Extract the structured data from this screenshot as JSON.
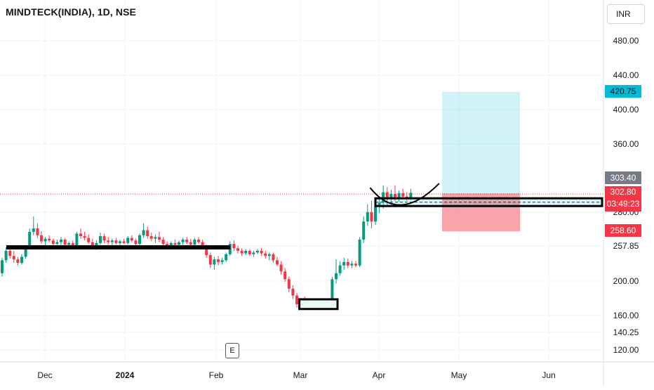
{
  "header": {
    "symbol_title": "MINDTECK(INDIA), 1D, NSE",
    "currency": "INR"
  },
  "earnings_marker": {
    "label": "E"
  },
  "colors": {
    "up": "#089981",
    "down": "#f23645",
    "target_zone": "#00bcd4",
    "stop_zone": "#f23645",
    "annotation": "#000000",
    "grid": "#f0f3fa"
  },
  "price_tags": {
    "target": "420.75",
    "last": "303.40",
    "current": "302.80",
    "countdown": "03:49:23",
    "stop": "258.60"
  },
  "chart_data": {
    "type": "candlestick",
    "title": "MINDTECK(INDIA), 1D, NSE",
    "y_axis": {
      "side": "right",
      "tick_labels": [
        "480.00",
        "440.00",
        "400.00",
        "360.00",
        "280.00",
        "257.85",
        "200.00",
        "160.00",
        "140.25",
        "120.00"
      ]
    },
    "x_axis": {
      "tick_labels": [
        "Dec",
        "2024",
        "Feb",
        "Mar",
        "Apr",
        "May",
        "Jun"
      ]
    },
    "grid": true,
    "candles": [
      {
        "o": 210,
        "h": 228,
        "l": 206,
        "c": 225
      },
      {
        "o": 225,
        "h": 240,
        "l": 222,
        "c": 236
      },
      {
        "o": 236,
        "h": 239,
        "l": 227,
        "c": 230
      },
      {
        "o": 230,
        "h": 236,
        "l": 222,
        "c": 226
      },
      {
        "o": 226,
        "h": 229,
        "l": 219,
        "c": 222
      },
      {
        "o": 222,
        "h": 232,
        "l": 220,
        "c": 229
      },
      {
        "o": 229,
        "h": 243,
        "l": 227,
        "c": 241
      },
      {
        "o": 241,
        "h": 262,
        "l": 239,
        "c": 258
      },
      {
        "o": 258,
        "h": 276,
        "l": 254,
        "c": 262
      },
      {
        "o": 262,
        "h": 268,
        "l": 251,
        "c": 254
      },
      {
        "o": 254,
        "h": 259,
        "l": 244,
        "c": 247
      },
      {
        "o": 247,
        "h": 252,
        "l": 242,
        "c": 250
      },
      {
        "o": 250,
        "h": 254,
        "l": 246,
        "c": 248
      },
      {
        "o": 248,
        "h": 250,
        "l": 242,
        "c": 244
      },
      {
        "o": 244,
        "h": 249,
        "l": 240,
        "c": 246
      },
      {
        "o": 246,
        "h": 252,
        "l": 243,
        "c": 249
      },
      {
        "o": 249,
        "h": 251,
        "l": 241,
        "c": 243
      },
      {
        "o": 243,
        "h": 247,
        "l": 240,
        "c": 245
      },
      {
        "o": 245,
        "h": 248,
        "l": 238,
        "c": 240
      },
      {
        "o": 240,
        "h": 258,
        "l": 238,
        "c": 256
      },
      {
        "o": 256,
        "h": 262,
        "l": 250,
        "c": 253
      },
      {
        "o": 253,
        "h": 258,
        "l": 248,
        "c": 251
      },
      {
        "o": 251,
        "h": 255,
        "l": 244,
        "c": 246
      },
      {
        "o": 246,
        "h": 250,
        "l": 238,
        "c": 241
      },
      {
        "o": 241,
        "h": 248,
        "l": 237,
        "c": 245
      },
      {
        "o": 245,
        "h": 257,
        "l": 243,
        "c": 253
      },
      {
        "o": 253,
        "h": 256,
        "l": 245,
        "c": 248
      },
      {
        "o": 248,
        "h": 252,
        "l": 243,
        "c": 246
      },
      {
        "o": 246,
        "h": 250,
        "l": 242,
        "c": 248
      },
      {
        "o": 248,
        "h": 251,
        "l": 243,
        "c": 245
      },
      {
        "o": 245,
        "h": 249,
        "l": 241,
        "c": 247
      },
      {
        "o": 247,
        "h": 250,
        "l": 244,
        "c": 245
      },
      {
        "o": 245,
        "h": 253,
        "l": 243,
        "c": 251
      },
      {
        "o": 251,
        "h": 254,
        "l": 246,
        "c": 248
      },
      {
        "o": 248,
        "h": 250,
        "l": 242,
        "c": 244
      },
      {
        "o": 244,
        "h": 256,
        "l": 242,
        "c": 254
      },
      {
        "o": 254,
        "h": 268,
        "l": 251,
        "c": 260
      },
      {
        "o": 260,
        "h": 264,
        "l": 250,
        "c": 253
      },
      {
        "o": 253,
        "h": 257,
        "l": 247,
        "c": 250
      },
      {
        "o": 250,
        "h": 255,
        "l": 245,
        "c": 252
      },
      {
        "o": 252,
        "h": 258,
        "l": 246,
        "c": 249
      },
      {
        "o": 249,
        "h": 252,
        "l": 241,
        "c": 244
      },
      {
        "o": 244,
        "h": 247,
        "l": 238,
        "c": 241
      },
      {
        "o": 241,
        "h": 247,
        "l": 238,
        "c": 245
      },
      {
        "o": 245,
        "h": 249,
        "l": 241,
        "c": 243
      },
      {
        "o": 243,
        "h": 248,
        "l": 240,
        "c": 246
      },
      {
        "o": 246,
        "h": 251,
        "l": 243,
        "c": 249
      },
      {
        "o": 249,
        "h": 252,
        "l": 244,
        "c": 246
      },
      {
        "o": 246,
        "h": 250,
        "l": 240,
        "c": 243
      },
      {
        "o": 243,
        "h": 251,
        "l": 241,
        "c": 249
      },
      {
        "o": 249,
        "h": 252,
        "l": 244,
        "c": 246
      },
      {
        "o": 246,
        "h": 249,
        "l": 238,
        "c": 240
      },
      {
        "o": 240,
        "h": 243,
        "l": 228,
        "c": 231
      },
      {
        "o": 231,
        "h": 234,
        "l": 216,
        "c": 220
      },
      {
        "o": 220,
        "h": 229,
        "l": 214,
        "c": 226
      },
      {
        "o": 226,
        "h": 230,
        "l": 219,
        "c": 223
      },
      {
        "o": 223,
        "h": 228,
        "l": 220,
        "c": 225
      },
      {
        "o": 225,
        "h": 234,
        "l": 223,
        "c": 232
      },
      {
        "o": 232,
        "h": 247,
        "l": 230,
        "c": 244
      },
      {
        "o": 244,
        "h": 248,
        "l": 236,
        "c": 239
      },
      {
        "o": 239,
        "h": 242,
        "l": 233,
        "c": 236
      },
      {
        "o": 236,
        "h": 239,
        "l": 230,
        "c": 233
      },
      {
        "o": 233,
        "h": 238,
        "l": 231,
        "c": 236
      },
      {
        "o": 236,
        "h": 238,
        "l": 230,
        "c": 232
      },
      {
        "o": 232,
        "h": 236,
        "l": 229,
        "c": 234
      },
      {
        "o": 234,
        "h": 238,
        "l": 232,
        "c": 236
      },
      {
        "o": 236,
        "h": 239,
        "l": 230,
        "c": 233
      },
      {
        "o": 233,
        "h": 236,
        "l": 227,
        "c": 230
      },
      {
        "o": 230,
        "h": 234,
        "l": 225,
        "c": 232
      },
      {
        "o": 232,
        "h": 234,
        "l": 222,
        "c": 225
      },
      {
        "o": 225,
        "h": 229,
        "l": 218,
        "c": 220
      },
      {
        "o": 220,
        "h": 224,
        "l": 208,
        "c": 212
      },
      {
        "o": 212,
        "h": 216,
        "l": 200,
        "c": 203
      },
      {
        "o": 203,
        "h": 206,
        "l": 188,
        "c": 192
      },
      {
        "o": 192,
        "h": 196,
        "l": 180,
        "c": 184
      },
      {
        "o": 184,
        "h": 187,
        "l": 170,
        "c": 174
      },
      {
        "o": 174,
        "h": 181,
        "l": 170,
        "c": 178
      },
      {
        "o": 178,
        "h": 183,
        "l": 172,
        "c": 175
      },
      {
        "o": 175,
        "h": 179,
        "l": 171,
        "c": 176
      },
      {
        "o": 176,
        "h": 180,
        "l": 171,
        "c": 173
      },
      {
        "o": 173,
        "h": 179,
        "l": 171,
        "c": 177
      },
      {
        "o": 177,
        "h": 181,
        "l": 172,
        "c": 174
      },
      {
        "o": 174,
        "h": 178,
        "l": 171,
        "c": 176
      },
      {
        "o": 176,
        "h": 180,
        "l": 172,
        "c": 178
      },
      {
        "o": 178,
        "h": 206,
        "l": 176,
        "c": 203
      },
      {
        "o": 203,
        "h": 226,
        "l": 198,
        "c": 210
      },
      {
        "o": 210,
        "h": 224,
        "l": 207,
        "c": 219
      },
      {
        "o": 219,
        "h": 228,
        "l": 214,
        "c": 223
      },
      {
        "o": 223,
        "h": 227,
        "l": 216,
        "c": 219
      },
      {
        "o": 219,
        "h": 224,
        "l": 216,
        "c": 221
      },
      {
        "o": 221,
        "h": 224,
        "l": 217,
        "c": 219
      },
      {
        "o": 219,
        "h": 252,
        "l": 217,
        "c": 249
      },
      {
        "o": 249,
        "h": 276,
        "l": 245,
        "c": 270
      },
      {
        "o": 270,
        "h": 290,
        "l": 265,
        "c": 281
      },
      {
        "o": 281,
        "h": 294,
        "l": 262,
        "c": 270
      },
      {
        "o": 270,
        "h": 292,
        "l": 266,
        "c": 287
      },
      {
        "o": 287,
        "h": 298,
        "l": 280,
        "c": 292
      },
      {
        "o": 292,
        "h": 312,
        "l": 285,
        "c": 304
      },
      {
        "o": 304,
        "h": 310,
        "l": 287,
        "c": 298
      },
      {
        "o": 298,
        "h": 307,
        "l": 290,
        "c": 302
      },
      {
        "o": 302,
        "h": 312,
        "l": 294,
        "c": 298
      },
      {
        "o": 298,
        "h": 306,
        "l": 293,
        "c": 303
      },
      {
        "o": 303,
        "h": 308,
        "l": 296,
        "c": 299
      },
      {
        "o": 299,
        "h": 304,
        "l": 294,
        "c": 297
      },
      {
        "o": 297,
        "h": 308,
        "l": 295,
        "c": 303.4
      }
    ],
    "last_close": 302.8,
    "position": {
      "type": "long",
      "entry": 302.8,
      "target": 420.75,
      "stop": 258.6
    },
    "annotations": [
      {
        "type": "horizontal-band",
        "label": "support",
        "from": 0,
        "to": 57,
        "price": 240
      },
      {
        "type": "rectangle",
        "label": "base",
        "from": 76,
        "to": 85,
        "low": 170,
        "high": 178
      },
      {
        "type": "rectangle",
        "label": "breakout-zone",
        "from": 95,
        "to": 160,
        "low": 288,
        "high": 297
      },
      {
        "type": "arc",
        "label": "cup",
        "from": 99,
        "to": 108
      }
    ]
  }
}
